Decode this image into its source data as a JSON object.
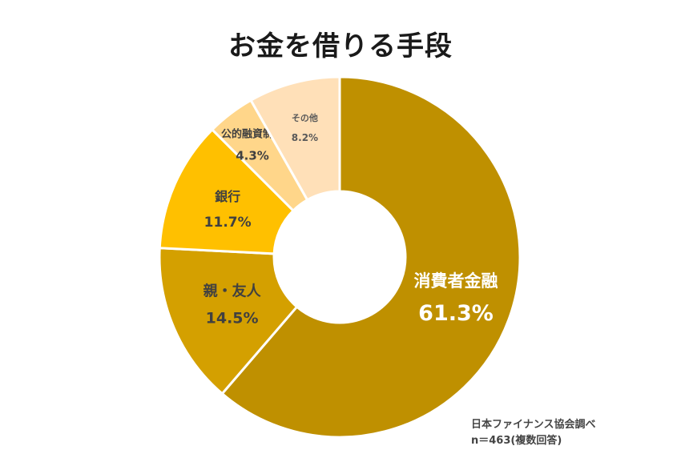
{
  "chart_data": {
    "type": "pie",
    "title": "お金を借りる手段",
    "categories": [
      "消費者金融",
      "親・友人",
      "銀行",
      "公的融資制度",
      "その他"
    ],
    "values": [
      61.3,
      14.5,
      11.7,
      4.3,
      8.2
    ],
    "value_labels": [
      "61.3%",
      "14.5%",
      "11.7%",
      "4.3%",
      "8.2%"
    ],
    "colors": [
      "#BF9000",
      "#D4A000",
      "#FFC000",
      "#FFD68A",
      "#FFE0B8"
    ],
    "label_colors": [
      "#FFFFFF",
      "#404040",
      "#404040",
      "#404040",
      "#595959"
    ],
    "legend": "none",
    "style": "donut"
  },
  "source": {
    "line1": "日本ファイナンス協会調べ",
    "line2": "n＝463(複数回答)"
  }
}
